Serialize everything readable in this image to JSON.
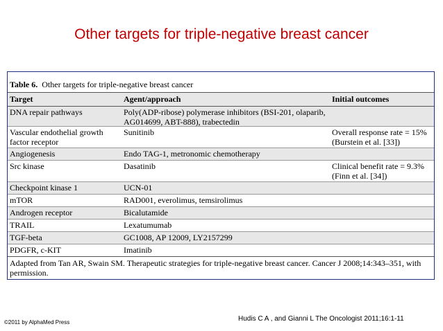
{
  "slide_title": "Other targets for triple-negative breast cancer",
  "table": {
    "caption_label": "Table 6.",
    "caption_text": "Other targets for triple-negative breast cancer",
    "headers": [
      "Target",
      "Agent/approach",
      "Initial outcomes"
    ],
    "rows": [
      {
        "target": "DNA repair pathways",
        "agent": "Poly(ADP-ribose) polymerase inhibitors (BSI-201, olaparib, AG014699, ABT-888), trabectedin",
        "outcome": ""
      },
      {
        "target": "Vascular endothelial growth factor receptor",
        "agent": "Sunitinib",
        "outcome": "Overall response rate = 15% (Burstein et al. [33])"
      },
      {
        "target": "Angiogenesis",
        "agent": "Endo TAG-1, metronomic chemotherapy",
        "outcome": ""
      },
      {
        "target": "Src kinase",
        "agent": "Dasatinib",
        "outcome": "Clinical benefit rate = 9.3% (Finn et al. [34])"
      },
      {
        "target": "Checkpoint kinase 1",
        "agent": "UCN-01",
        "outcome": ""
      },
      {
        "target": "mTOR",
        "agent": "RAD001, everolimus, temsirolimus",
        "outcome": ""
      },
      {
        "target": "Androgen receptor",
        "agent": "Bicalutamide",
        "outcome": ""
      },
      {
        "target": "TRAIL",
        "agent": "Lexatumumab",
        "outcome": ""
      },
      {
        "target": "TGF-beta",
        "agent": "GC1008, AP 12009, LY2157299",
        "outcome": ""
      },
      {
        "target": "PDGFR, c-KIT",
        "agent": "Imatinib",
        "outcome": ""
      }
    ],
    "footnote": "Adapted from Tan AR, Swain SM. Therapeutic strategies for triple-negative breast cancer. Cancer J 2008;14:343–351, with permission."
  },
  "citation": "Hudis C A , and Gianni L The Oncologist 2011;16:1-11",
  "copyright": "©2011 by AlphaMed Press",
  "colors": {
    "title": "#c00000",
    "row_shade": "#e7e7e7",
    "border": "#1f2f7f"
  }
}
